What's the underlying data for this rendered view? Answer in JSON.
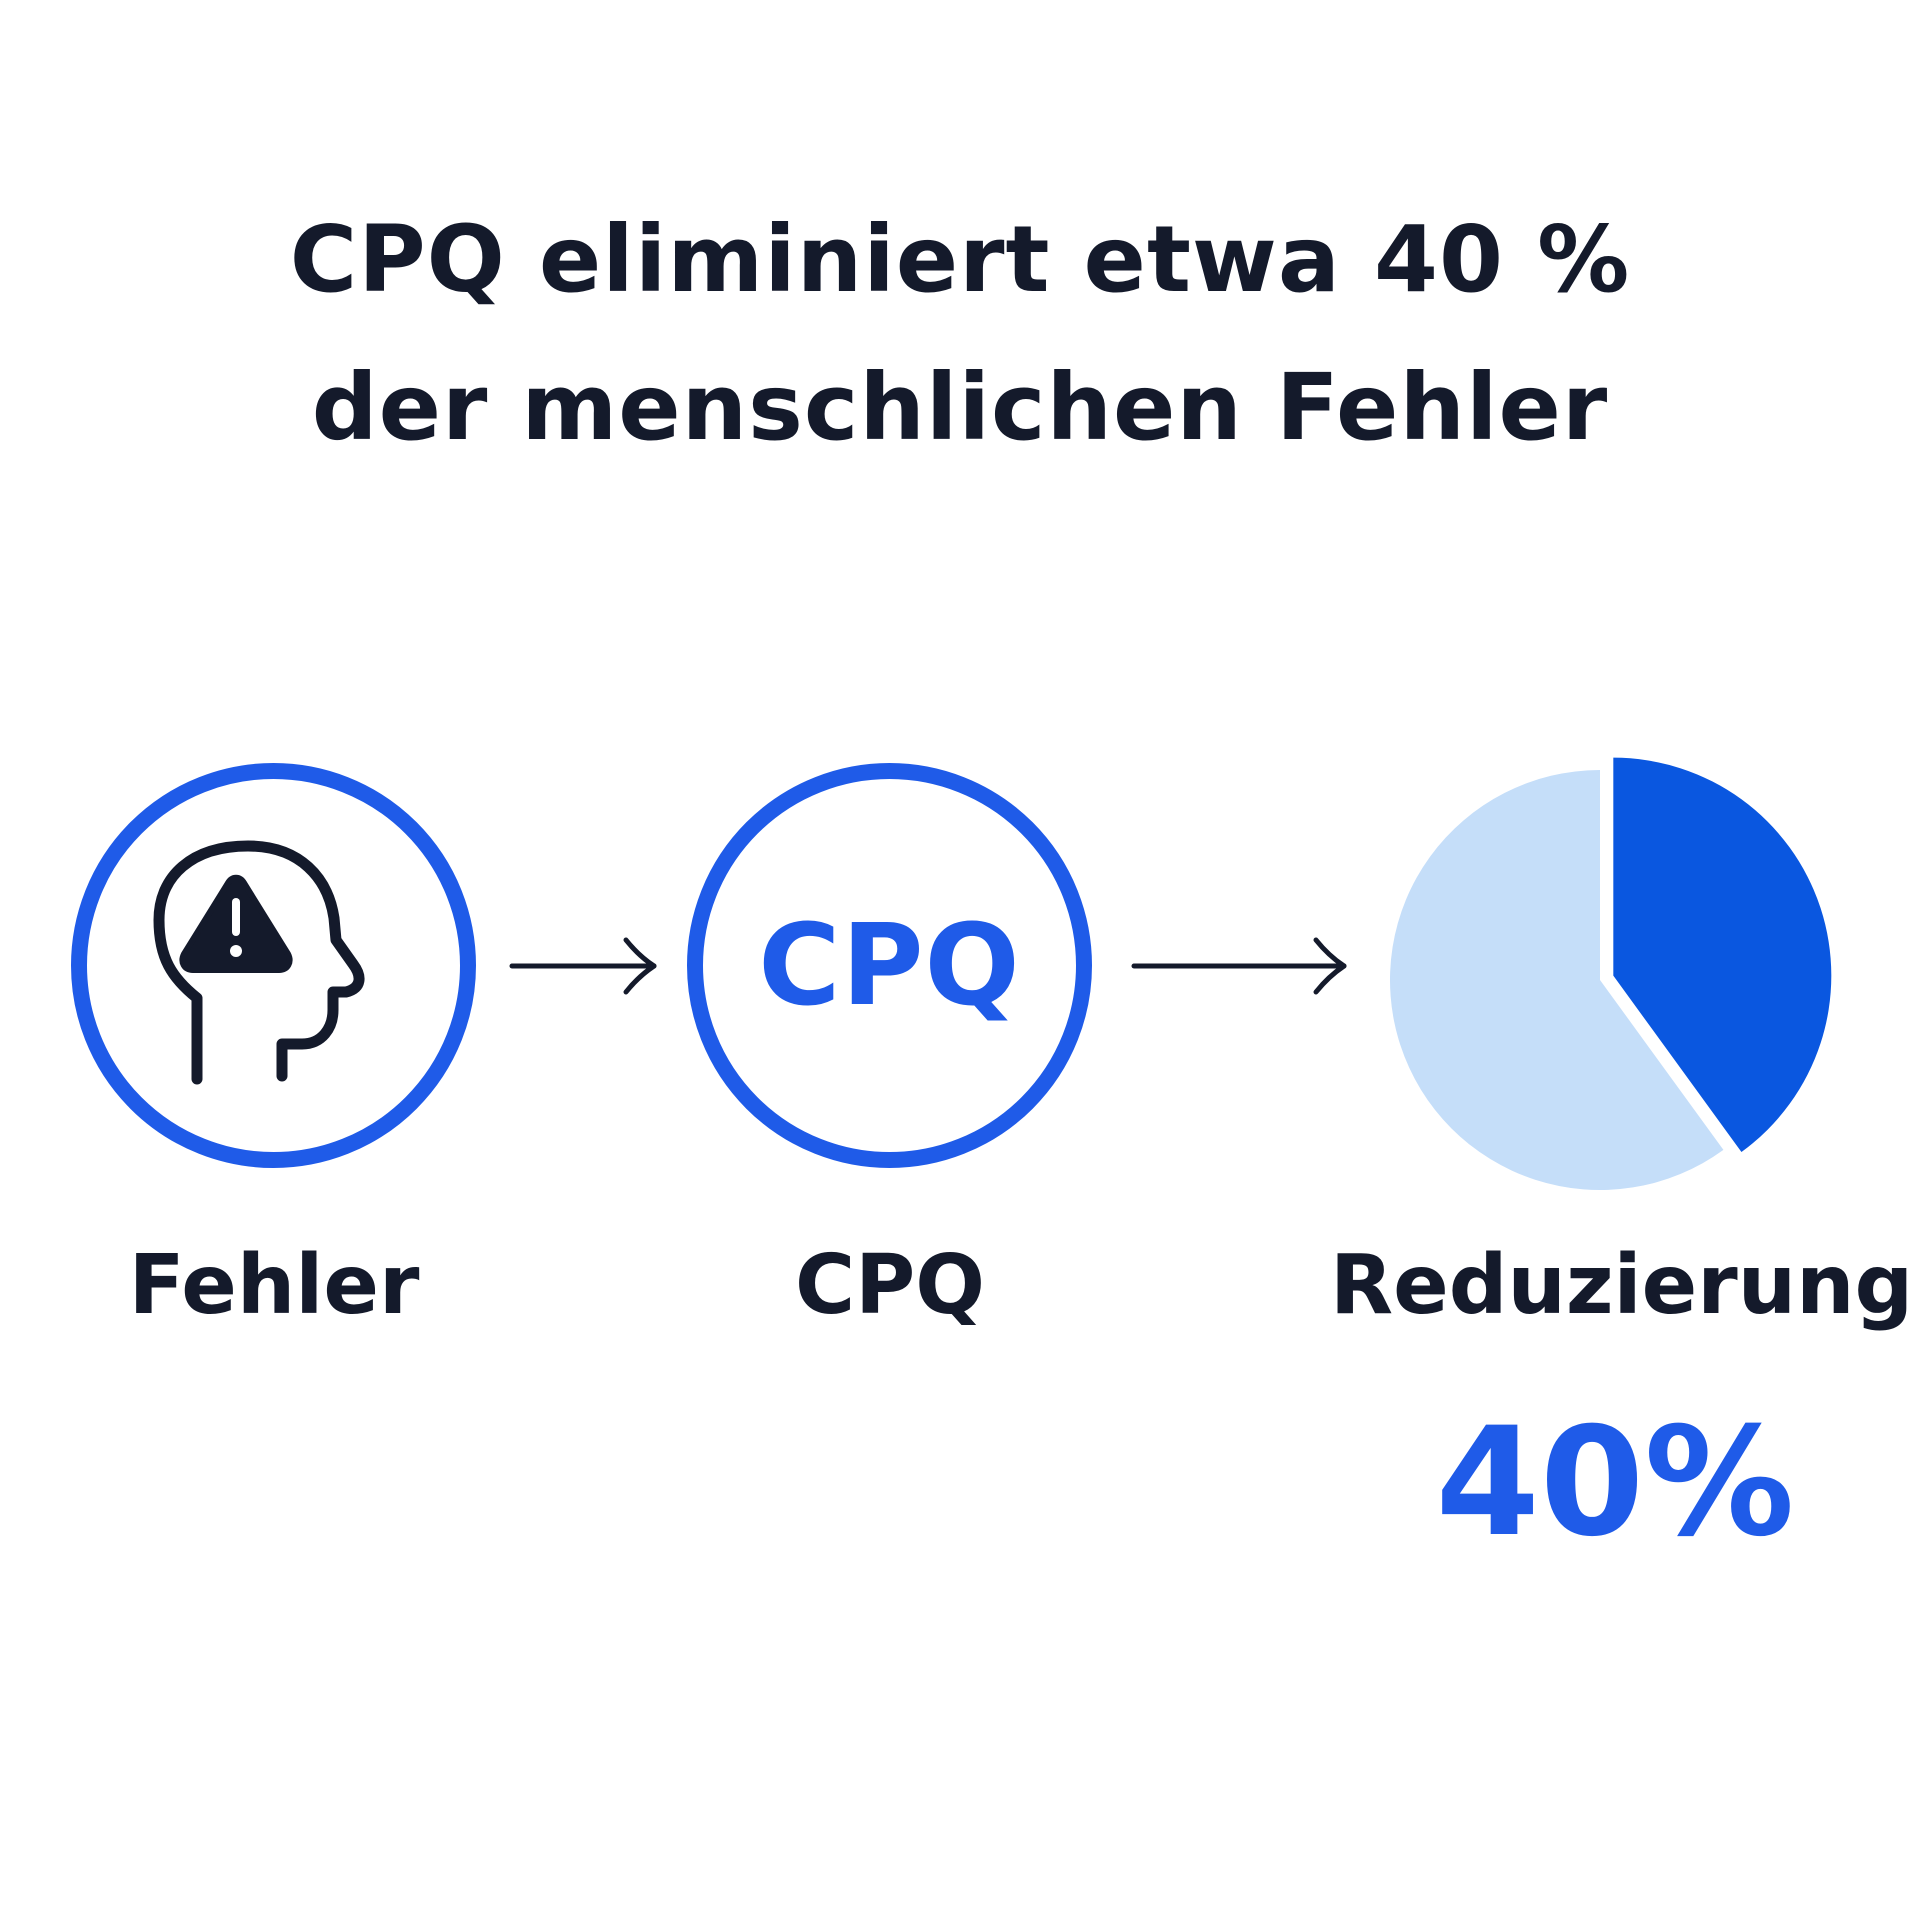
{
  "title": {
    "line1": "CPQ eliminiert etwa 40 %",
    "line2": "der menschlichen Fehler"
  },
  "steps": [
    {
      "label": "Fehler",
      "icon": "head-warning-icon"
    },
    {
      "label": "CPQ",
      "inner_text": "CPQ"
    },
    {
      "label": "Reduzierung",
      "icon": "pie-chart-icon"
    }
  ],
  "result": {
    "value_text": "40%",
    "fraction": 0.4
  },
  "colors": {
    "accent": "#1f5be8",
    "pie_highlight": "#0a57e0",
    "pie_rest": "#c5def9",
    "text": "#141a2b"
  }
}
